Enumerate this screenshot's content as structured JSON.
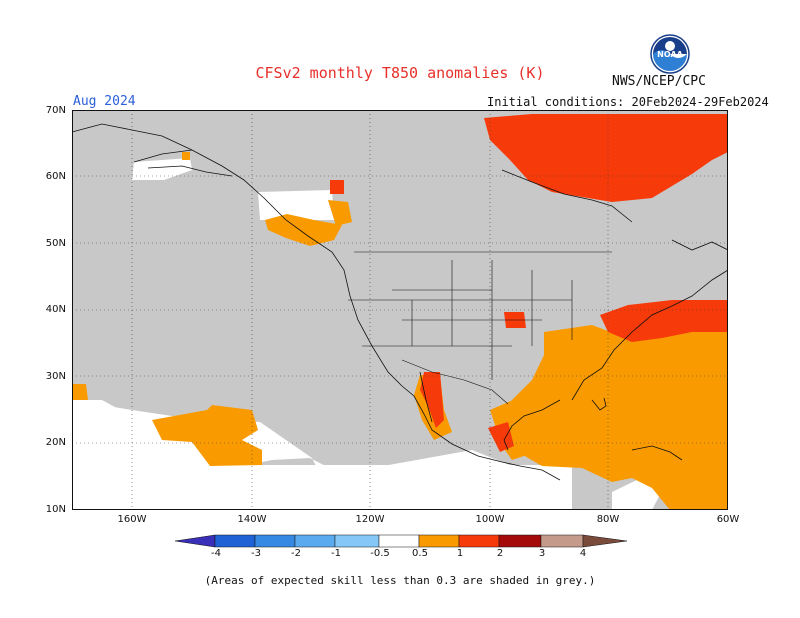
{
  "header": {
    "title": "CFSv2 monthly T850 anomalies (K)",
    "org": "NWS/NCEP/CPC",
    "month": "Aug 2024",
    "initial_conditions": "Initial conditions: 20Feb2024-29Feb2024",
    "logo_text": "NOAA"
  },
  "axes": {
    "lat_labels": [
      "70N",
      "60N",
      "50N",
      "40N",
      "30N",
      "20N",
      "10N"
    ],
    "lon_labels": [
      "160W",
      "140W",
      "120W",
      "100W",
      "80W",
      "60W"
    ]
  },
  "colorbar": {
    "labels": [
      "-4",
      "-3",
      "-2",
      "-1",
      "-0.5",
      "0.5",
      "1",
      "2",
      "3",
      "4"
    ],
    "colors": [
      "#3a2fb8",
      "#1f62d6",
      "#3589e3",
      "#5aaaf0",
      "#85c8f8",
      "#ffffff",
      "#f99a00",
      "#f73a0a",
      "#a40a0a",
      "#c49a8a",
      "#7a4a3a"
    ]
  },
  "map_colors": {
    "skill_grey": "#c8c8c8",
    "warm_1": "#f99a00",
    "warm_2": "#f73a0a",
    "warm_3": "#d61d1d",
    "no_anomaly": "#ffffff"
  },
  "footnote": "(Areas of expected skill less than 0.3 are shaded in grey.)"
}
